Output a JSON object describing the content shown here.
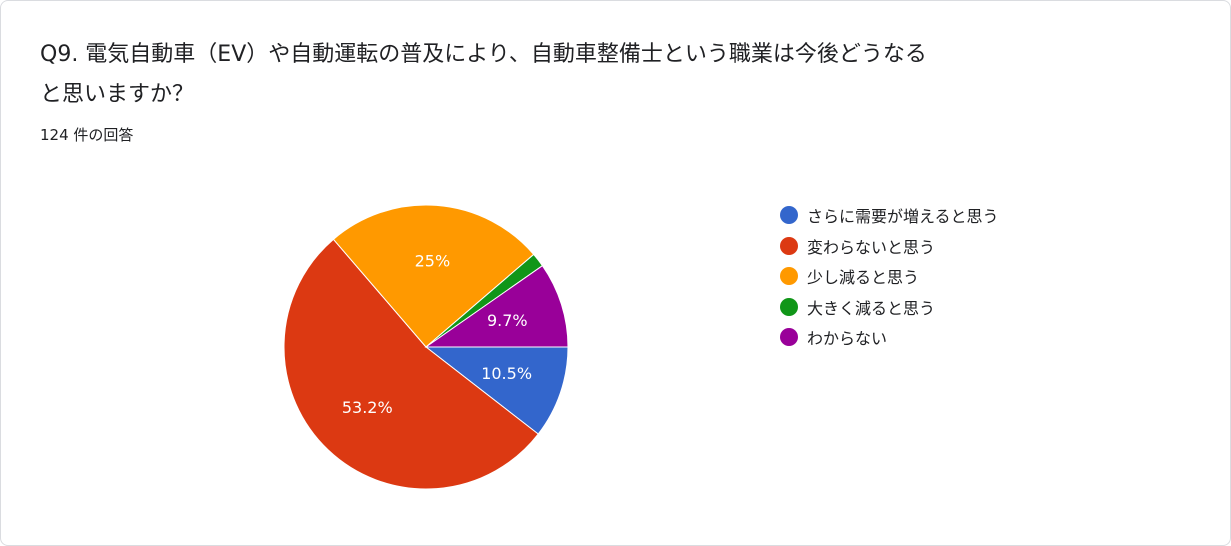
{
  "question": {
    "title": "Q9. 電気自動車（EV）や自動運転の普及により、自動車整備士という職業は今後どうなると思いますか？",
    "response_count": "124 件の回答"
  },
  "chart_data": {
    "type": "pie",
    "total_responses": 124,
    "legend_position": "right",
    "start_angle_deg": 90,
    "direction": "clockwise",
    "slices": [
      {
        "label": "さらに需要が増えると思う",
        "percent": 10.5,
        "display": "10.5%",
        "color": "#3366cc"
      },
      {
        "label": "変わらないと思う",
        "percent": 53.2,
        "display": "53.2%",
        "color": "#dc3912"
      },
      {
        "label": "少し減ると思う",
        "percent": 25.0,
        "display": "25%",
        "color": "#ff9900"
      },
      {
        "label": "大きく減ると思う",
        "percent": 1.6,
        "display": "",
        "color": "#109618"
      },
      {
        "label": "わからない",
        "percent": 9.7,
        "display": "9.7%",
        "color": "#990099"
      }
    ]
  }
}
